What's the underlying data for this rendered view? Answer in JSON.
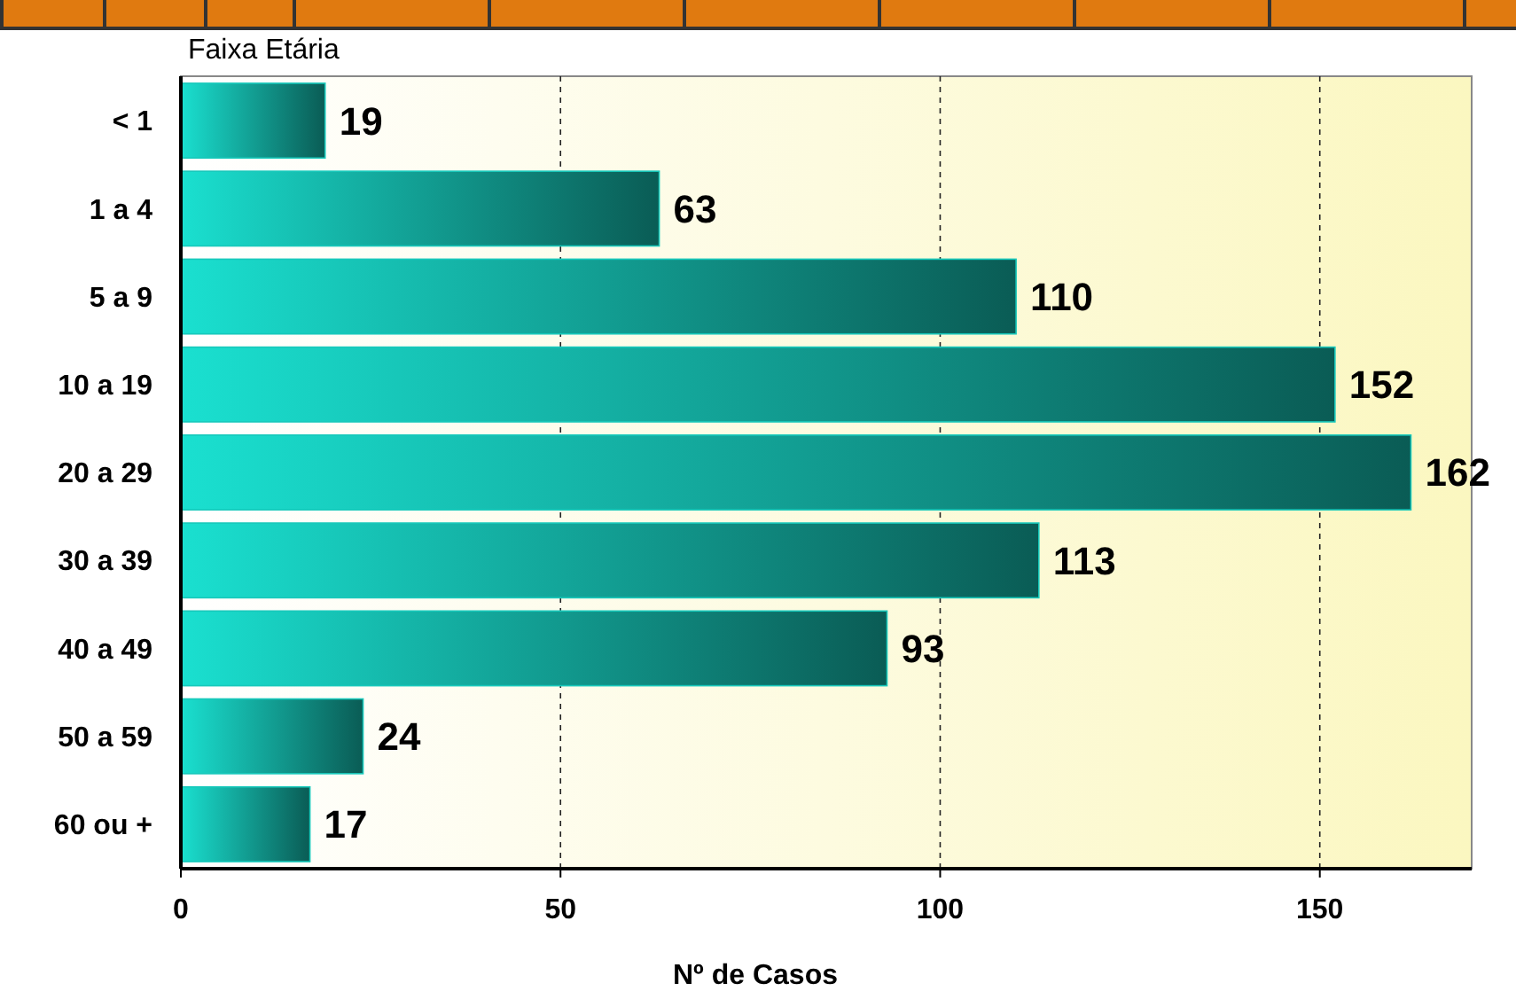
{
  "chart_data": {
    "type": "bar",
    "orientation": "horizontal",
    "ylabel": "Faixa Etária",
    "xlabel": "Nº de Casos",
    "categories": [
      "< 1",
      "1 a 4",
      "5 a 9",
      "10 a 19",
      "20 a 29",
      "30 a 39",
      "40 a 49",
      "50 a 59",
      "60 ou +"
    ],
    "values": [
      19,
      63,
      110,
      152,
      162,
      113,
      93,
      24,
      17
    ],
    "color": "#17c9bb",
    "xlim": [
      0,
      170
    ],
    "xticks": [
      0,
      50,
      100,
      150
    ],
    "grid": "x",
    "data_labels": true
  }
}
